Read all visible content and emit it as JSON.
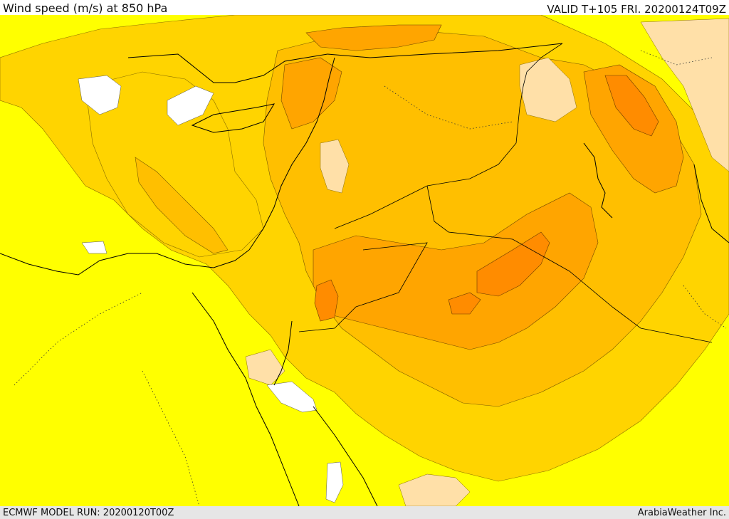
{
  "header": {
    "title": "Wind speed (m/s) at 850 hPa",
    "valid": "VALID T+105 FRI. 20200124T09Z"
  },
  "footer": {
    "model_run": "ECMWF MODEL RUN: 20200120T00Z",
    "brand": "ArabiaWeather Inc."
  },
  "colors": {
    "level_0_5": "#ffffff",
    "level_5_10": "#ffff00",
    "level_10_15": "#ffd400",
    "level_15_20": "#ffbf00",
    "level_20_25": "#ffa500",
    "level_25_30": "#ff8c00",
    "peach_patches": "#ffe0a8",
    "coastline": "#000000"
  }
}
